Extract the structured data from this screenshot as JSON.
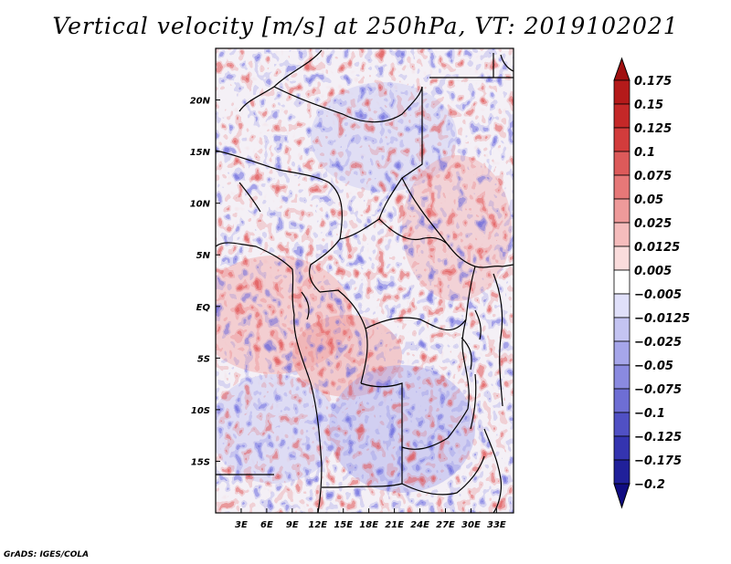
{
  "title": "Vertical velocity [m/s] at 250hPa, VT: 2019102021",
  "credit": "GrADS: IGES/COLA",
  "chart_data": {
    "type": "heatmap",
    "variable": "Vertical velocity",
    "units": "m/s",
    "level": "250hPa",
    "valid_time": "2019102021",
    "x_axis": {
      "ticks": [
        3,
        6,
        9,
        12,
        15,
        18,
        21,
        24,
        27,
        30,
        33
      ],
      "tick_labels": [
        "3E",
        "6E",
        "9E",
        "12E",
        "15E",
        "18E",
        "21E",
        "24E",
        "27E",
        "30E",
        "33E"
      ],
      "range": [
        0,
        35
      ]
    },
    "y_axis": {
      "ticks": [
        20,
        15,
        10,
        5,
        0,
        -5,
        -10,
        -15
      ],
      "tick_labels": [
        "20N",
        "15N",
        "10N",
        "5N",
        "EQ",
        "5S",
        "10S",
        "15S"
      ],
      "range": [
        -20,
        25
      ]
    },
    "colorbar": {
      "levels": [
        0.175,
        0.15,
        0.125,
        0.1,
        0.075,
        0.05,
        0.025,
        0.0125,
        0.005,
        -0.005,
        -0.0125,
        -0.025,
        -0.05,
        -0.075,
        -0.1,
        -0.125,
        -0.175,
        -0.2
      ],
      "labels": [
        "0.175",
        "0.15",
        "0.125",
        "0.1",
        "0.075",
        "0.05",
        "0.025",
        "0.0125",
        "0.005",
        "−0.005",
        "−0.0125",
        "−0.025",
        "−0.05",
        "−0.075",
        "−0.1",
        "−0.125",
        "−0.175",
        "−0.2"
      ],
      "colors": [
        "#a01010",
        "#b41a1a",
        "#c42828",
        "#d23c3c",
        "#dc5a5a",
        "#e67878",
        "#ee9a9a",
        "#f5bcbc",
        "#fadcdc",
        "#ffffff",
        "#e0e0fa",
        "#c4c4f2",
        "#a6a6ea",
        "#8a8ae0",
        "#6e6ed4",
        "#5050c4",
        "#3434b0",
        "#20209a",
        "#100c82"
      ]
    }
  }
}
